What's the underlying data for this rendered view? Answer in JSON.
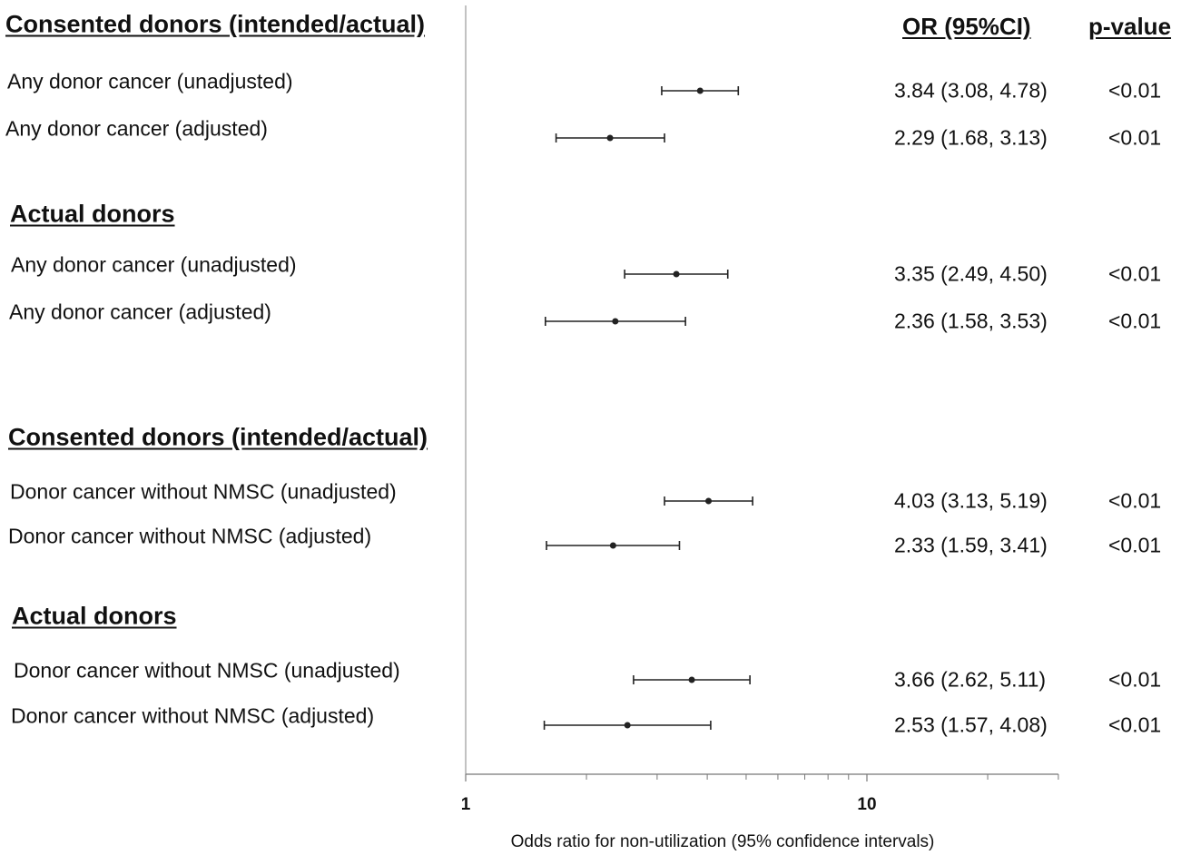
{
  "chart_data": {
    "type": "forest",
    "column_headers": {
      "or": "OR (95%CI)",
      "p": "p-value"
    },
    "sections": [
      {
        "title": "Consented donors (intended/actual)",
        "rows": [
          {
            "label": "Any donor cancer (unadjusted)",
            "or": 3.84,
            "lo": 3.08,
            "hi": 4.78,
            "or_text": "3.84 (3.08, 4.78)",
            "p": "<0.01"
          },
          {
            "label": "Any donor cancer (adjusted)",
            "or": 2.29,
            "lo": 1.68,
            "hi": 3.13,
            "or_text": "2.29 (1.68, 3.13)",
            "p": "<0.01"
          }
        ]
      },
      {
        "title": "Actual donors",
        "rows": [
          {
            "label": "Any donor cancer (unadjusted)",
            "or": 3.35,
            "lo": 2.49,
            "hi": 4.5,
            "or_text": "3.35 (2.49, 4.50)",
            "p": "<0.01"
          },
          {
            "label": "Any donor cancer (adjusted)",
            "or": 2.36,
            "lo": 1.58,
            "hi": 3.53,
            "or_text": "2.36 (1.58, 3.53)",
            "p": "<0.01"
          }
        ]
      },
      {
        "title": "Consented donors (intended/actual)",
        "rows": [
          {
            "label": "Donor cancer without NMSC (unadjusted)",
            "or": 4.03,
            "lo": 3.13,
            "hi": 5.19,
            "or_text": "4.03 (3.13, 5.19)",
            "p": "<0.01"
          },
          {
            "label": "Donor cancer without NMSC (adjusted)",
            "or": 2.33,
            "lo": 1.59,
            "hi": 3.41,
            "or_text": "2.33 (1.59, 3.41)",
            "p": "<0.01"
          }
        ]
      },
      {
        "title": "Actual donors",
        "rows": [
          {
            "label": "Donor cancer without NMSC (unadjusted)",
            "or": 3.66,
            "lo": 2.62,
            "hi": 5.11,
            "or_text": "3.66 (2.62, 5.11)",
            "p": "<0.01"
          },
          {
            "label": "Donor cancer without NMSC (adjusted)",
            "or": 2.53,
            "lo": 1.57,
            "hi": 4.08,
            "or_text": "2.53 (1.57, 4.08)",
            "p": "<0.01"
          }
        ]
      }
    ],
    "x_axis": {
      "scale": "log",
      "range": [
        1,
        30
      ],
      "tick_labels": [
        {
          "value": 1,
          "label": "1"
        },
        {
          "value": 10,
          "label": "10"
        }
      ],
      "minor_ticks": [
        2,
        3,
        4,
        5,
        6,
        7,
        8,
        9,
        20,
        30
      ],
      "label": "Odds ratio for non-utilization (95% confidence intervals)"
    },
    "reference_line": 1,
    "grid": false
  }
}
